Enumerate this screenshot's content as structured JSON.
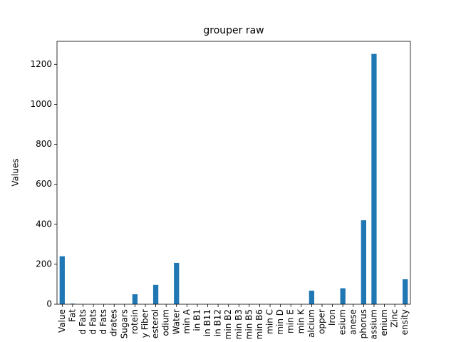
{
  "chart_data": {
    "type": "bar",
    "title": "grouper raw",
    "y_label": "Values",
    "categories": [
      "Value",
      "Fat",
      "d Fats",
      "d Fats",
      "d Fats",
      "drates",
      "Sugars",
      "rotein",
      "y Fiber",
      "esterol",
      "odium",
      "Water",
      "min A",
      "in B1",
      "in B11",
      "in B12",
      "min B2",
      "min B3",
      "min B5",
      "min B6",
      "min C",
      "min D",
      "min E",
      "min K",
      "alcium",
      "opper",
      "Iron",
      "esium",
      "anese",
      "phorus",
      "assium",
      "enium",
      "Zinc",
      "ensity"
    ],
    "values": [
      240,
      3,
      0,
      0,
      0,
      0,
      0,
      50,
      0,
      97,
      0,
      207,
      0,
      0,
      0,
      0,
      0,
      0,
      0,
      0,
      0,
      0,
      0,
      0,
      68,
      0,
      0,
      80,
      0,
      420,
      1252,
      0,
      0,
      125
    ],
    "color": "#1f77b4",
    "ylim": [
      0,
      1315
    ],
    "yticks": [
      0,
      200,
      400,
      600,
      800,
      1000,
      1200
    ],
    "grid": false
  }
}
